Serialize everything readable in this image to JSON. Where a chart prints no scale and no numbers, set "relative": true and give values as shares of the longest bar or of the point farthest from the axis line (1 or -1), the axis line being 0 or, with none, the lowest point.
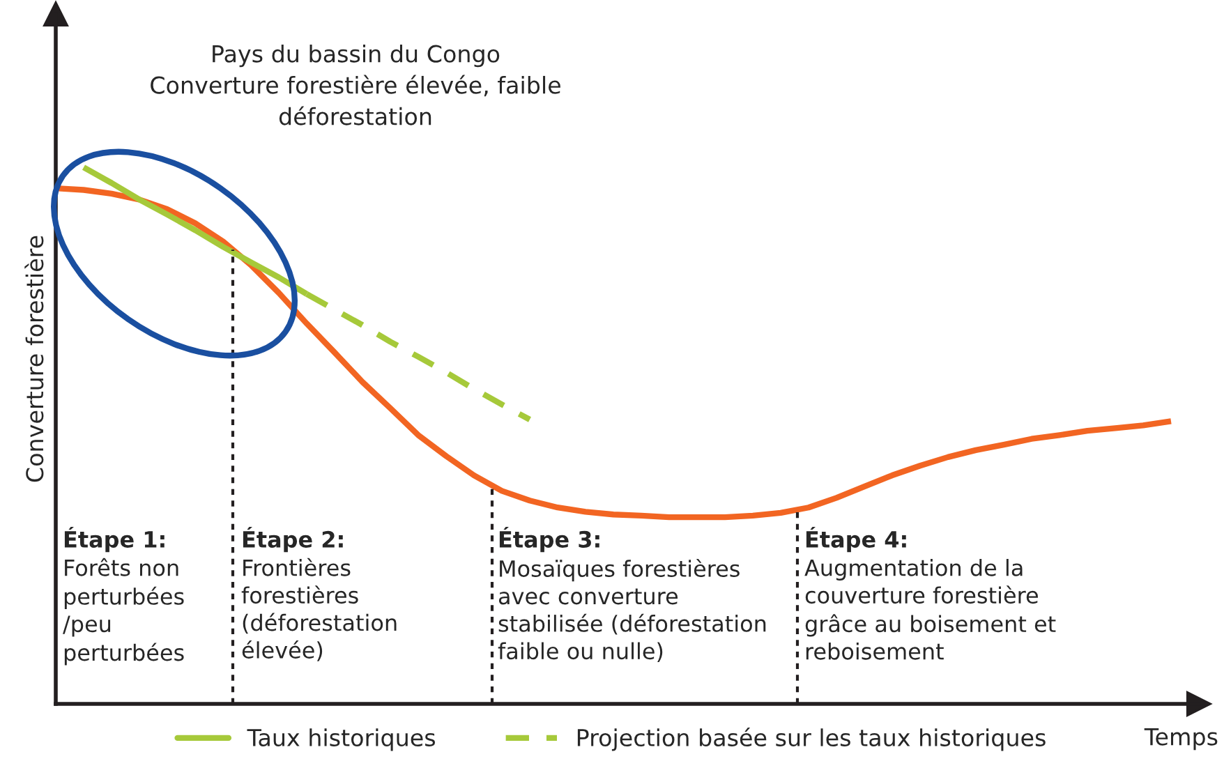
{
  "chart_data": {
    "type": "line",
    "relative": true,
    "legend": "bottom",
    "xlabel": "Temps",
    "ylabel": "Converture forestière",
    "categories": [
      null,
      null,
      null,
      null,
      null,
      null,
      null,
      null,
      null,
      null,
      null,
      null,
      null,
      null,
      null,
      null,
      null,
      null,
      null,
      null,
      null,
      null,
      null,
      null,
      null,
      null,
      null,
      null,
      null,
      null,
      null,
      null,
      null,
      null,
      null,
      null,
      null,
      null,
      null,
      null,
      null
    ],
    "series": [
      {
        "color": "#f26522",
        "line_style": "solid",
        "values": [
          0.961,
          0.958,
          0.951,
          0.94,
          0.922,
          0.896,
          0.862,
          0.818,
          0.766,
          0.709,
          0.655,
          0.6,
          0.551,
          0.501,
          0.462,
          0.426,
          0.397,
          0.379,
          0.366,
          0.358,
          0.353,
          0.351,
          0.348,
          0.348,
          0.348,
          0.351,
          0.356,
          0.366,
          0.384,
          0.405,
          0.426,
          0.444,
          0.46,
          0.473,
          0.483,
          0.494,
          0.501,
          0.509,
          0.514,
          0.519,
          0.527
        ]
      },
      {
        "name": "Taux historiques",
        "color": "#a6c93a",
        "line_style": "solid",
        "values": [
          null,
          1.0,
          0.971,
          0.94,
          0.912,
          0.883,
          0.852,
          0.823,
          0.795,
          0.764,
          null,
          null,
          null,
          null,
          null,
          null,
          null,
          null,
          null,
          null,
          null,
          null,
          null,
          null,
          null,
          null,
          null,
          null,
          null,
          null,
          null,
          null,
          null,
          null,
          null,
          null,
          null,
          null,
          null,
          null,
          null
        ]
      },
      {
        "name": "Projection basée sur les taux historiques",
        "color": "#a6c93a",
        "line_style": "dashed",
        "values": [
          null,
          null,
          null,
          null,
          null,
          null,
          null,
          null,
          null,
          0.764,
          0.735,
          0.706,
          0.675,
          0.647,
          0.618,
          0.587,
          0.558,
          0.53,
          null,
          null,
          null,
          null,
          null,
          null,
          null,
          null,
          null,
          null,
          null,
          null,
          null,
          null,
          null,
          null,
          null,
          null,
          null,
          null,
          null,
          null,
          null
        ]
      }
    ],
    "annotations": [
      "Pays du bassin du Congo\nConverture forestière élevée, faible\ndéforestation",
      "Étape 1:\nForêts non\nperturbées\n/peu\nperturbées",
      "Étape 2:\nFrontières\nforestières\n(déforestation\nélevée)",
      "Étape 3:\nMosaïques forestières\navec converture\nstabilisée (déforestation\nfaible ou nulle)",
      "Étape 4:\nAugmentation de la\ncouverture forestière\ngrâce au boisement et\nreboisement"
    ]
  }
}
